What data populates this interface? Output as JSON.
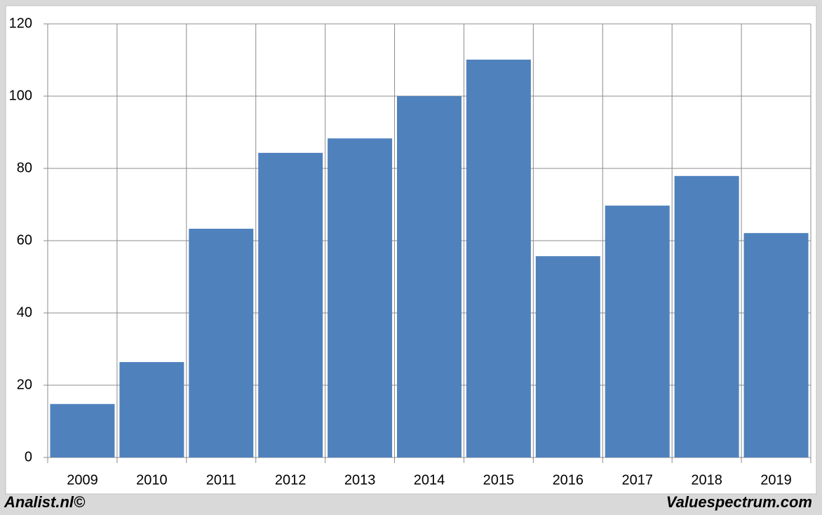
{
  "chart_data": {
    "type": "bar",
    "categories": [
      "2009",
      "2010",
      "2011",
      "2012",
      "2013",
      "2014",
      "2015",
      "2016",
      "2017",
      "2018",
      "2019"
    ],
    "values": [
      14.8,
      26.4,
      63.3,
      84.3,
      88.3,
      100,
      110.1,
      55.7,
      69.7,
      77.9,
      62.1
    ],
    "color": "#4f81bd",
    "ylim": [
      0,
      120
    ],
    "yticks": [
      0,
      20,
      40,
      60,
      80,
      100,
      120
    ],
    "grid": true,
    "footer_left": "Analist.nl©",
    "footer_right": "Valuespectrum.com"
  }
}
